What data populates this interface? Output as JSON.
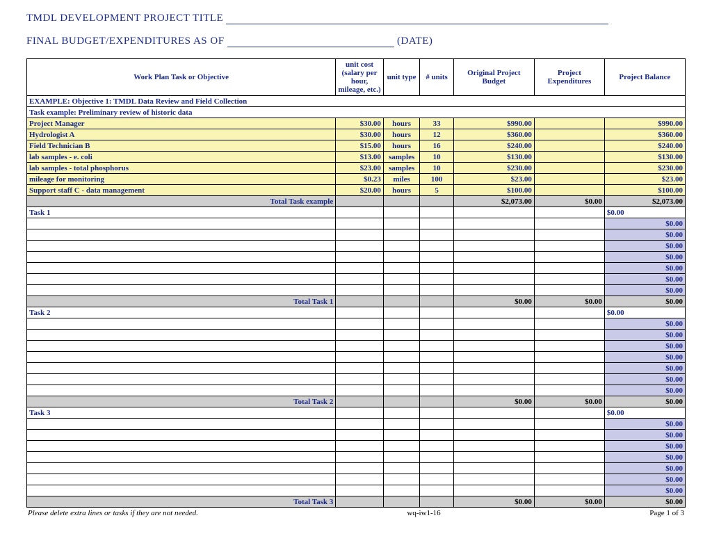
{
  "header": {
    "title_label": "TMDL DEVELOPMENT PROJECT TITLE",
    "asof_label": "FINAL BUDGET/EXPENDITURES AS OF",
    "date_label": "(DATE)"
  },
  "columns": {
    "main": "Work Plan Task or Objective",
    "unit_cost": "unit cost (salary per hour, mileage, etc.)",
    "unit_type": "unit type",
    "units": "# units",
    "budget": "Original Project Budget",
    "expend": "Project Expenditures",
    "balance": "Project Balance"
  },
  "example": {
    "objective": "EXAMPLE: Objective 1: TMDL Data Review and Field Collection",
    "task": "Task example: Preliminary review of historic data",
    "rows": [
      {
        "desc": "Project Manager",
        "cost": "$30.00",
        "type": "hours",
        "units": "33",
        "budget": "$990.00",
        "bal": "$990.00"
      },
      {
        "desc": "Hydrologist A",
        "cost": "$30.00",
        "type": "hours",
        "units": "12",
        "budget": "$360.00",
        "bal": "$360.00"
      },
      {
        "desc": "Field Technician B",
        "cost": "$15.00",
        "type": "hours",
        "units": "16",
        "budget": "$240.00",
        "bal": "$240.00"
      },
      {
        "desc": "lab samples - e. coli",
        "cost": "$13.00",
        "type": "samples",
        "units": "10",
        "budget": "$130.00",
        "bal": "$130.00"
      },
      {
        "desc": "lab samples - total phosphorus",
        "cost": "$23.00",
        "type": "samples",
        "units": "10",
        "budget": "$230.00",
        "bal": "$230.00"
      },
      {
        "desc": "mileage for monitoring",
        "cost": "$0.23",
        "type": "miles",
        "units": "100",
        "budget": "$23.00",
        "bal": "$23.00"
      },
      {
        "desc": "Support staff C - data management",
        "cost": "$20.00",
        "type": "hours",
        "units": "5",
        "budget": "$100.00",
        "bal": "$100.00"
      }
    ],
    "total_label": "Total Task example",
    "total_budget": "$2,073.00",
    "total_exp": "$0.00",
    "total_bal": "$2,073.00"
  },
  "tasks": [
    {
      "name": "Task 1",
      "total_label": "Total Task 1",
      "blank_rows": 7,
      "budget": "$0.00",
      "exp": "$0.00",
      "bal": "$0.00",
      "row_bal": "$0.00"
    },
    {
      "name": "Task 2",
      "total_label": "Total Task 2",
      "blank_rows": 7,
      "budget": "$0.00",
      "exp": "$0.00",
      "bal": "$0.00",
      "row_bal": "$0.00"
    },
    {
      "name": "Task 3",
      "total_label": "Total Task 3",
      "blank_rows": 7,
      "budget": "$0.00",
      "exp": "$0.00",
      "bal": "$0.00",
      "row_bal": "$0.00"
    }
  ],
  "footer": {
    "note": "Please delete extra lines or tasks if they are not needed.",
    "code": "wq-iw1-16",
    "page": "Page 1 of 3"
  },
  "style": {
    "text_blue": "#1a2a8a",
    "row_yellow": "#f9f5b5",
    "row_lavender": "#c9c9e8",
    "row_total": "#cfcfcf",
    "border": "#000000",
    "background": "#ffffff"
  }
}
